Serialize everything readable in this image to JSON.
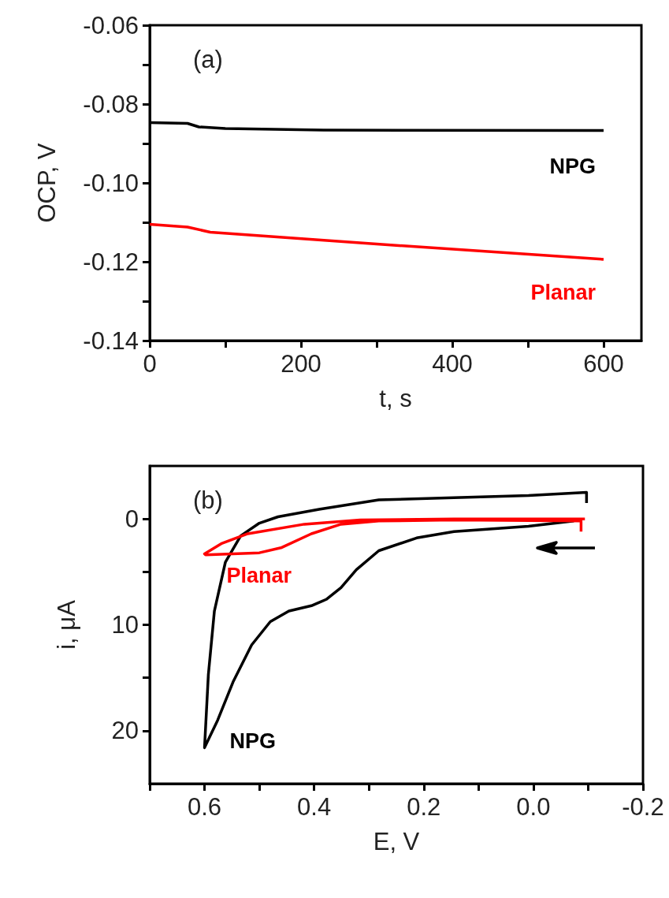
{
  "chart_data": [
    {
      "type": "line",
      "xlabel": "t, s",
      "ylabel": "OCP, V",
      "annotations": [
        "(a)"
      ],
      "xlim": [
        0,
        650
      ],
      "ylim": [
        -0.14,
        -0.06
      ],
      "xticks": [
        0,
        {
          "value": 100,
          "label": null
        },
        200,
        {
          "value": 300,
          "label": null
        },
        400,
        {
          "value": 500,
          "label": null
        },
        600
      ],
      "yticks": [
        -0.14,
        {
          "value": -0.13,
          "label": null
        },
        {
          "value": -0.12,
          "label": "-0.12"
        },
        {
          "value": -0.11,
          "label": null
        },
        {
          "value": -0.1,
          "label": "-0.10"
        },
        {
          "value": -0.09,
          "label": null
        },
        -0.08,
        {
          "value": -0.07,
          "label": null
        },
        -0.06
      ],
      "series": [
        {
          "name": "NPG",
          "color": "#000000",
          "x": [
            0,
            50,
            65,
            100,
            230,
            600
          ],
          "values": [
            -0.0847,
            -0.0849,
            -0.0858,
            -0.0862,
            -0.0866,
            -0.0867
          ]
        },
        {
          "name": "Planar",
          "color": "#ff0000",
          "x": [
            0,
            50,
            80,
            300,
            600
          ],
          "values": [
            -0.1105,
            -0.1112,
            -0.1125,
            -0.1155,
            -0.1194
          ]
        }
      ]
    },
    {
      "type": "line",
      "xlabel": "E, V",
      "ylabel": "i, μA",
      "annotations": [
        "(b)"
      ],
      "xlim": [
        0.7,
        -0.2
      ],
      "ylim": [
        25,
        -5
      ],
      "xticks": [
        {
          "value": 0.7,
          "label": null
        },
        0.6,
        {
          "value": 0.5,
          "label": null
        },
        0.4,
        {
          "value": 0.3,
          "label": null
        },
        0.2,
        {
          "value": 0.1,
          "label": null
        },
        {
          "value": 0,
          "label": "0.0"
        },
        {
          "value": -0.1,
          "label": null
        },
        -0.2
      ],
      "yticks": [
        0,
        {
          "value": 5,
          "label": null
        },
        10,
        {
          "value": 15,
          "label": null
        },
        20
      ],
      "series": [
        {
          "name": "NPG",
          "color": "#000000",
          "x": [
            -0.074,
            0.009,
            0.145,
            0.213,
            0.282,
            0.323,
            0.351,
            0.378,
            0.405,
            0.446,
            0.48,
            0.514,
            0.548,
            0.576,
            0.6,
            0.593,
            0.582,
            0.562,
            0.534,
            0.5,
            0.466,
            0.391,
            0.282,
            0.145,
            0.009,
            -0.097,
            -0.097
          ],
          "values": [
            0.2,
            0.7,
            1.2,
            1.8,
            3.0,
            4.8,
            6.5,
            7.6,
            8.2,
            8.7,
            9.7,
            11.9,
            15.4,
            19,
            21.6,
            14.7,
            8.7,
            4.1,
            1.6,
            0.4,
            -0.2,
            -0.9,
            -1.8,
            -2.0,
            -2.2,
            -2.5,
            -1.5
          ]
        },
        {
          "name": "Planar",
          "color": "#ff0000",
          "x": [
            -0.087,
            -0.087,
            0.145,
            0.282,
            0.351,
            0.405,
            0.459,
            0.5,
            0.598,
            0.6,
            0.568,
            0.521,
            0.418,
            0.316,
            0.145,
            -0.094
          ],
          "values": [
            1.2,
            0.2,
            0.1,
            0.2,
            0.5,
            1.4,
            2.7,
            3.2,
            3.4,
            3.3,
            2.3,
            1.4,
            0.5,
            0.1,
            0,
            0
          ]
        }
      ]
    }
  ]
}
